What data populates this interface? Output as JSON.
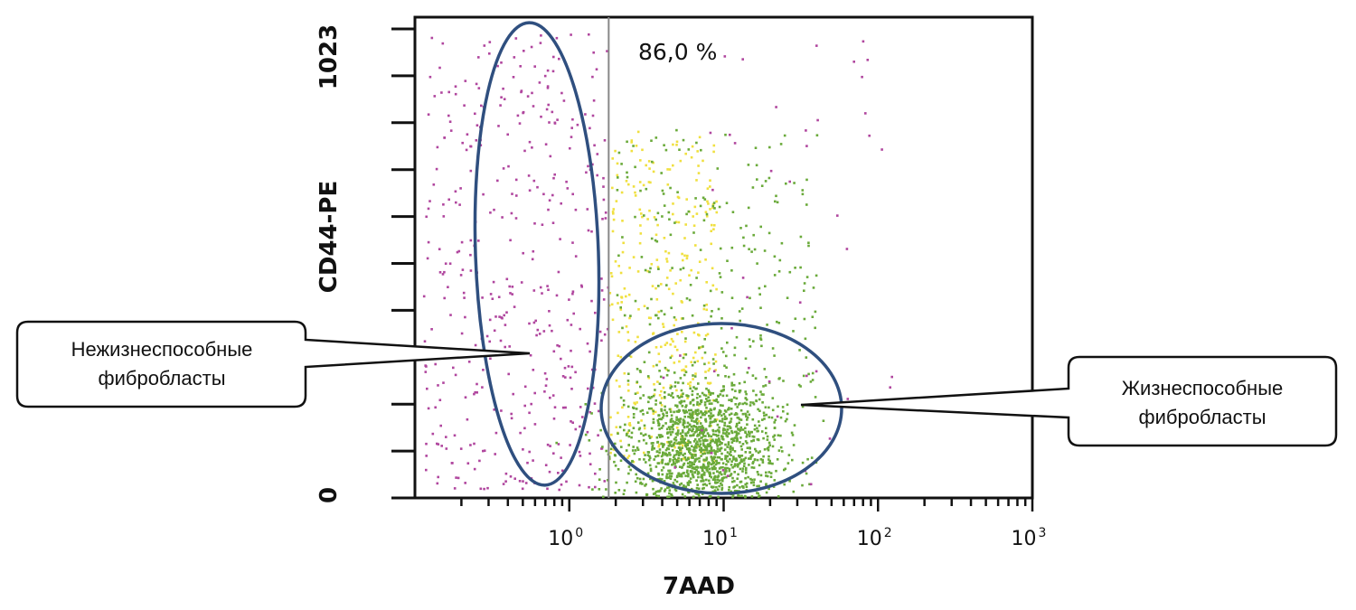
{
  "chart_data": {
    "type": "scatter",
    "title": "",
    "xlabel": "7AAD",
    "ylabel": "CD44-PE",
    "x_scale": "log",
    "xlim": [
      0.1,
      1000
    ],
    "ylim": [
      0,
      1023
    ],
    "x_tick_labels": [
      {
        "base": "10",
        "exp": "0",
        "value": 1
      },
      {
        "base": "10",
        "exp": "1",
        "value": 10
      },
      {
        "base": "10",
        "exp": "2",
        "value": 100
      },
      {
        "base": "10",
        "exp": "3",
        "value": 1000
      }
    ],
    "y_tick_labels": [
      {
        "text": "0",
        "value": 0
      },
      {
        "text": "1023",
        "value": 1023
      }
    ],
    "gate": {
      "x": 1.8,
      "percent_label": "86,0 %"
    },
    "series": [],
    "point_clusters": [
      {
        "color": "#b0469e",
        "count": 420,
        "x_log_range": [
          -0.95,
          0.25
        ],
        "y_range": [
          20,
          1010
        ]
      },
      {
        "color": "#f0e040",
        "count": 330,
        "x_log_range": [
          0.25,
          0.95
        ],
        "y_range": [
          80,
          800
        ]
      },
      {
        "color": "#6aaa3a",
        "count": 1400,
        "x_log_center": 0.85,
        "x_log_spread": 0.25,
        "y_center": 110,
        "y_spread": 75
      },
      {
        "color": "#6aaa3a",
        "count": 260,
        "x_log_range": [
          0.3,
          1.6
        ],
        "y_range": [
          150,
          800
        ]
      },
      {
        "color": "#b0469e",
        "count": 45,
        "x_log_range": [
          0.6,
          2.1
        ],
        "y_range": [
          20,
          1000
        ]
      }
    ],
    "annotations": [
      {
        "text": "Нежизнеспособные фибробласты",
        "region": "non-viable"
      },
      {
        "text": "Жизнеспособные фибробласты",
        "region": "viable"
      }
    ],
    "grid": false,
    "legend": "none"
  },
  "callouts": {
    "left": {
      "line1": "Нежизнеспособные",
      "line2": "фибробласты"
    },
    "right": {
      "line1": "Жизнеспособные",
      "line2": "фибробласты"
    }
  },
  "colors": {
    "axis": "#111111",
    "gate_ellipse": "#2f4f7f",
    "gate_line": "#888888",
    "nonviable_points": "#b0469e",
    "viable_points": "#6aaa3a",
    "intermediate_points": "#f0e040"
  }
}
